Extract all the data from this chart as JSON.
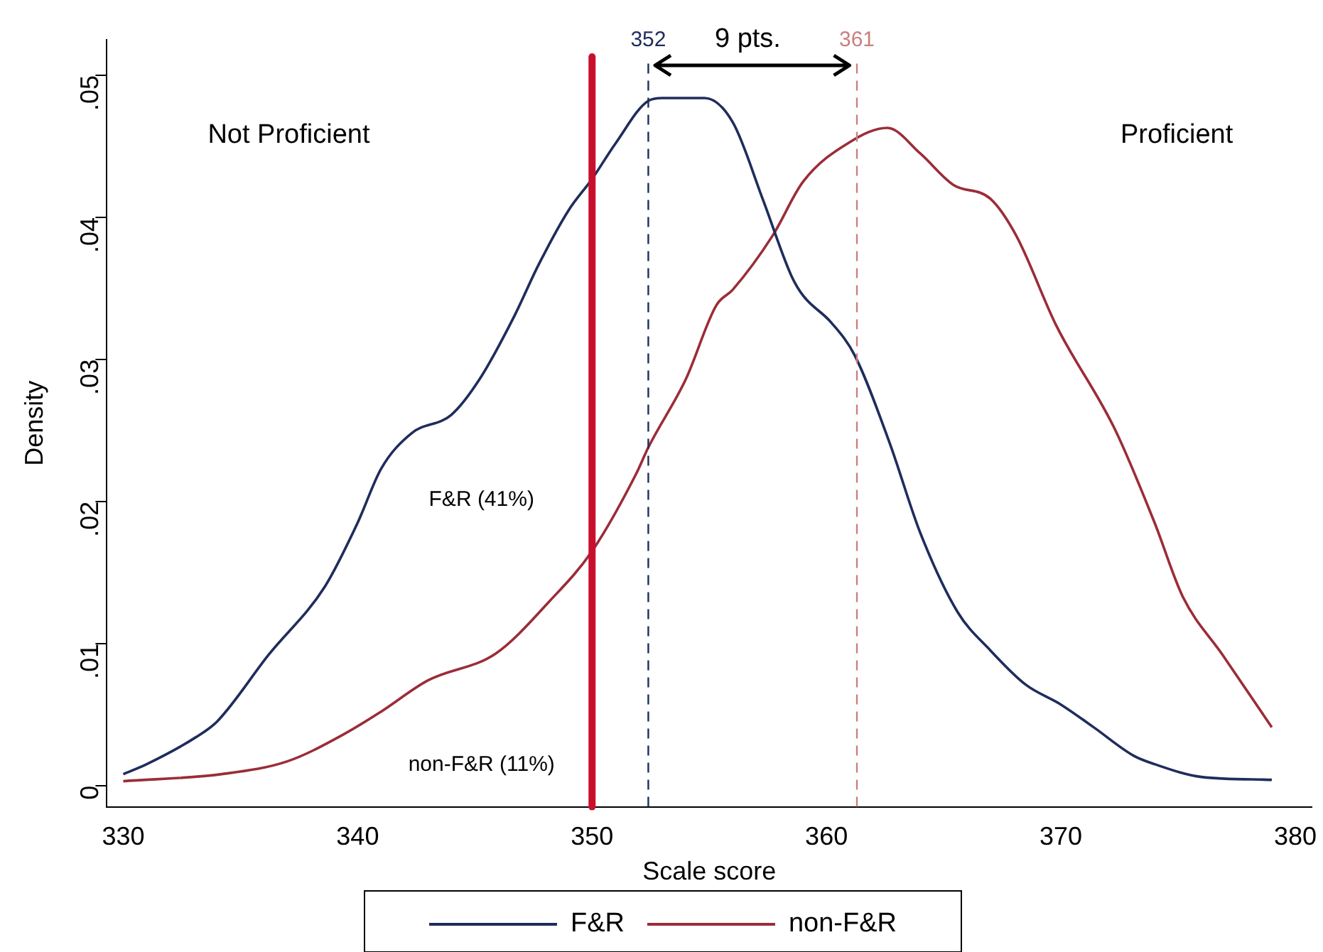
{
  "chart_data": {
    "type": "line",
    "xlabel": "Scale score",
    "ylabel": "Density",
    "xlim": [
      329.3,
      380.7
    ],
    "xticks": [
      330,
      340,
      350,
      360,
      370,
      380
    ],
    "ylim": [
      -0.0015,
      0.0525
    ],
    "yticks": [
      {
        "value": 0,
        "label": "0"
      },
      {
        "value": 0.01,
        "label": ".01"
      },
      {
        "value": 0.02,
        "label": ".02"
      },
      {
        "value": 0.03,
        "label": ".03"
      },
      {
        "value": 0.04,
        "label": ".04"
      },
      {
        "value": 0.05,
        "label": ".05"
      }
    ],
    "grid": false,
    "legend": "bottom",
    "marker": "none",
    "line_style": "solid",
    "series": [
      {
        "name": "F&R",
        "color": "#1f2d5c",
        "x": [
          330,
          331,
          333.1,
          334,
          336.2,
          338.6,
          340,
          341,
          342.3,
          344,
          345.2,
          346.7,
          347.7,
          349,
          350,
          351,
          352.4,
          353,
          354.8,
          356,
          357.3,
          358.5,
          359,
          360.2,
          361.2,
          362.7,
          364,
          365.6,
          367,
          368.5,
          370,
          371.4,
          373.1,
          374,
          376,
          379
        ],
        "values": [
          0.0008,
          0.0015,
          0.0034,
          0.0045,
          0.0092,
          0.014,
          0.0185,
          0.0223,
          0.0248,
          0.0261,
          0.0286,
          0.0331,
          0.0366,
          0.0405,
          0.0427,
          0.0452,
          0.0482,
          0.0484,
          0.0484,
          0.0467,
          0.0412,
          0.0359,
          0.0345,
          0.0326,
          0.0303,
          0.0241,
          0.0178,
          0.0122,
          0.0095,
          0.0071,
          0.0057,
          0.0041,
          0.0021,
          0.0015,
          0.0006,
          0.0004
        ]
      },
      {
        "name": "non-F&R",
        "color": "#9b2d38",
        "x": [
          330,
          334.2,
          337,
          339.4,
          341,
          343,
          345.9,
          348.2,
          350,
          351.9,
          352.4,
          354,
          355.3,
          356,
          357.7,
          359,
          361,
          362.6,
          364,
          365.4,
          367,
          368.1,
          369.8,
          372.3,
          374,
          375.2,
          376.9,
          379
        ],
        "values": [
          0.0003,
          0.0008,
          0.0017,
          0.0036,
          0.0052,
          0.0074,
          0.0093,
          0.013,
          0.0165,
          0.022,
          0.0238,
          0.0286,
          0.0338,
          0.0349,
          0.0387,
          0.0425,
          0.0453,
          0.0463,
          0.0445,
          0.0423,
          0.0413,
          0.0387,
          0.0324,
          0.0251,
          0.0185,
          0.0133,
          0.0092,
          0.0041
        ]
      }
    ],
    "ref_lines": [
      {
        "axis": "x",
        "value": 350,
        "color": "#c8102e",
        "line_style": "solid"
      },
      {
        "axis": "x",
        "value": 352.4,
        "label": "352",
        "color": "#1f2d5c",
        "line_style": "dashed"
      },
      {
        "axis": "x",
        "value": 361.3,
        "label": "361",
        "color": "#c98080",
        "line_style": "dashed"
      }
    ],
    "annotations": [
      "9 pts.",
      "Not Proficient",
      "Proficient",
      "F&R (41%)",
      "non-F&R (11%)"
    ]
  }
}
